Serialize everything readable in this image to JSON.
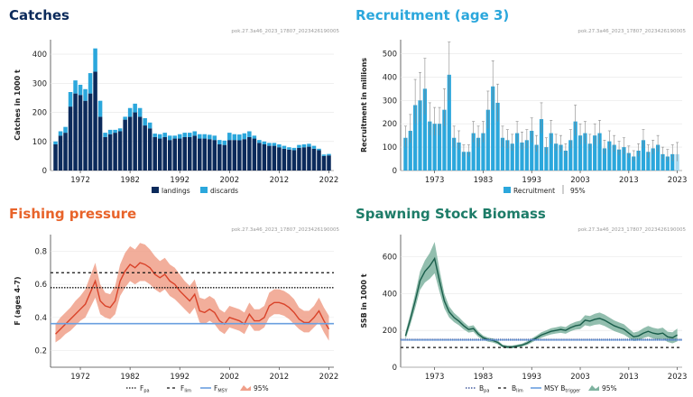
{
  "colors": {
    "title_navy": "#0b2a5b",
    "title_cyan": "#2ba7dc",
    "title_orange": "#e8632a",
    "title_teal": "#1d7c68",
    "landings": "#0b2a5b",
    "discards": "#2ba7dc",
    "recruitment": "#2ba7dc",
    "f_line": "#d9432a",
    "f_band": "#f0a08a",
    "ssb_line": "#1a5e4b",
    "ssb_band": "#7fb3a0",
    "msy_line": "#6a9fe0"
  },
  "chart_data": [
    {
      "id": "catches",
      "type": "bar",
      "title": "Catches",
      "code": "pok.27.3a46_2023_17807_2023426190005",
      "ylabel": "Catches in 1000 t",
      "ylim": [
        0,
        450
      ],
      "yticks": [
        0,
        100,
        200,
        300,
        400
      ],
      "xticks": [
        1972,
        1982,
        1992,
        2002,
        2012,
        2022
      ],
      "x": [
        1967,
        1968,
        1969,
        1970,
        1971,
        1972,
        1973,
        1974,
        1975,
        1976,
        1977,
        1978,
        1979,
        1980,
        1981,
        1982,
        1983,
        1984,
        1985,
        1986,
        1987,
        1988,
        1989,
        1990,
        1991,
        1992,
        1993,
        1994,
        1995,
        1996,
        1997,
        1998,
        1999,
        2000,
        2001,
        2002,
        2003,
        2004,
        2005,
        2006,
        2007,
        2008,
        2009,
        2010,
        2011,
        2012,
        2013,
        2014,
        2015,
        2016,
        2017,
        2018,
        2019,
        2020,
        2021,
        2022
      ],
      "series": [
        {
          "name": "landings",
          "values": [
            90,
            120,
            130,
            220,
            265,
            260,
            240,
            265,
            340,
            185,
            115,
            125,
            130,
            135,
            175,
            185,
            200,
            185,
            155,
            145,
            115,
            110,
            115,
            105,
            110,
            110,
            115,
            115,
            120,
            110,
            110,
            108,
            105,
            90,
            88,
            105,
            105,
            104,
            108,
            115,
            110,
            95,
            90,
            85,
            85,
            80,
            75,
            72,
            70,
            78,
            80,
            82,
            75,
            70,
            50,
            52
          ]
        },
        {
          "name": "discards",
          "values": [
            10,
            15,
            20,
            50,
            45,
            35,
            40,
            70,
            80,
            55,
            15,
            15,
            10,
            10,
            10,
            30,
            30,
            30,
            25,
            20,
            12,
            15,
            15,
            15,
            10,
            15,
            15,
            15,
            15,
            15,
            15,
            15,
            15,
            15,
            15,
            25,
            20,
            20,
            20,
            20,
            10,
            10,
            10,
            10,
            10,
            10,
            10,
            8,
            8,
            10,
            10,
            10,
            10,
            5,
            5,
            5
          ]
        }
      ],
      "legend": [
        "landings",
        "discards"
      ]
    },
    {
      "id": "recruitment",
      "type": "bar",
      "title": "Recruitment (age 3)",
      "code": "pok.27.3a46_2023_17807_2023426190005",
      "ylabel": "Recruitment in millions",
      "ylim": [
        0,
        560
      ],
      "yticks": [
        0,
        100,
        200,
        300,
        400,
        500
      ],
      "xticks": [
        1973,
        1983,
        1993,
        2003,
        2013,
        2023
      ],
      "x": [
        1967,
        1968,
        1969,
        1970,
        1971,
        1972,
        1973,
        1974,
        1975,
        1976,
        1977,
        1978,
        1979,
        1980,
        1981,
        1982,
        1983,
        1984,
        1985,
        1986,
        1987,
        1988,
        1989,
        1990,
        1991,
        1992,
        1993,
        1994,
        1995,
        1996,
        1997,
        1998,
        1999,
        2000,
        2001,
        2002,
        2003,
        2004,
        2005,
        2006,
        2007,
        2008,
        2009,
        2010,
        2011,
        2012,
        2013,
        2014,
        2015,
        2016,
        2017,
        2018,
        2019,
        2020,
        2021,
        2022,
        2023
      ],
      "values": [
        140,
        170,
        280,
        300,
        350,
        210,
        200,
        200,
        260,
        410,
        140,
        120,
        80,
        80,
        160,
        140,
        160,
        260,
        360,
        290,
        140,
        130,
        115,
        160,
        120,
        130,
        170,
        110,
        220,
        100,
        160,
        115,
        110,
        85,
        130,
        210,
        150,
        160,
        115,
        150,
        160,
        95,
        125,
        110,
        90,
        100,
        75,
        60,
        85,
        130,
        80,
        95,
        110,
        70,
        60,
        70,
        70
      ],
      "ci_low": [
        100,
        120,
        200,
        210,
        240,
        150,
        150,
        150,
        190,
        300,
        100,
        90,
        60,
        60,
        120,
        100,
        120,
        180,
        260,
        210,
        100,
        95,
        85,
        120,
        90,
        95,
        120,
        80,
        160,
        70,
        115,
        85,
        80,
        60,
        95,
        150,
        110,
        115,
        85,
        110,
        115,
        70,
        90,
        80,
        65,
        70,
        55,
        40,
        60,
        95,
        55,
        70,
        80,
        50,
        40,
        40,
        40
      ],
      "ci_high": [
        190,
        240,
        390,
        420,
        480,
        290,
        270,
        270,
        350,
        550,
        190,
        170,
        110,
        110,
        210,
        190,
        210,
        340,
        470,
        370,
        190,
        175,
        155,
        210,
        165,
        175,
        225,
        150,
        290,
        140,
        215,
        155,
        150,
        115,
        175,
        280,
        200,
        210,
        155,
        200,
        215,
        130,
        170,
        150,
        125,
        140,
        105,
        85,
        115,
        175,
        110,
        130,
        150,
        100,
        90,
        110,
        120
      ],
      "legend": [
        "Recruitment",
        "95%"
      ]
    },
    {
      "id": "fishing",
      "type": "line",
      "title": "Fishing pressure",
      "code": "pok.27.3a46_2023_17807_2023426190005",
      "ylabel": "F (ages 4-7)",
      "ylim": [
        0.1,
        0.9
      ],
      "yticks": [
        0.2,
        0.4,
        0.6,
        0.8
      ],
      "xticks": [
        1972,
        1982,
        1992,
        2002,
        2012,
        2022
      ],
      "x": [
        1967,
        1968,
        1969,
        1970,
        1971,
        1972,
        1973,
        1974,
        1975,
        1976,
        1977,
        1978,
        1979,
        1980,
        1981,
        1982,
        1983,
        1984,
        1985,
        1986,
        1987,
        1988,
        1989,
        1990,
        1991,
        1992,
        1993,
        1994,
        1995,
        1996,
        1997,
        1998,
        1999,
        2000,
        2001,
        2002,
        2003,
        2004,
        2005,
        2006,
        2007,
        2008,
        2009,
        2010,
        2011,
        2012,
        2013,
        2014,
        2015,
        2016,
        2017,
        2018,
        2019,
        2020,
        2021,
        2022
      ],
      "values": [
        0.3,
        0.33,
        0.36,
        0.39,
        0.42,
        0.45,
        0.48,
        0.55,
        0.62,
        0.5,
        0.47,
        0.46,
        0.5,
        0.62,
        0.68,
        0.72,
        0.7,
        0.73,
        0.72,
        0.7,
        0.66,
        0.64,
        0.66,
        0.62,
        0.6,
        0.56,
        0.53,
        0.5,
        0.54,
        0.44,
        0.43,
        0.45,
        0.43,
        0.38,
        0.36,
        0.4,
        0.39,
        0.38,
        0.36,
        0.42,
        0.38,
        0.38,
        0.4,
        0.47,
        0.49,
        0.49,
        0.48,
        0.46,
        0.43,
        0.39,
        0.37,
        0.37,
        0.4,
        0.44,
        0.38,
        0.33
      ],
      "ci_low": [
        0.25,
        0.27,
        0.3,
        0.32,
        0.35,
        0.38,
        0.4,
        0.46,
        0.52,
        0.42,
        0.4,
        0.39,
        0.42,
        0.53,
        0.58,
        0.62,
        0.6,
        0.62,
        0.62,
        0.6,
        0.57,
        0.55,
        0.57,
        0.53,
        0.51,
        0.48,
        0.45,
        0.42,
        0.46,
        0.37,
        0.36,
        0.38,
        0.36,
        0.32,
        0.3,
        0.34,
        0.33,
        0.32,
        0.3,
        0.36,
        0.32,
        0.32,
        0.34,
        0.4,
        0.42,
        0.42,
        0.41,
        0.39,
        0.36,
        0.33,
        0.31,
        0.31,
        0.34,
        0.37,
        0.31,
        0.26
      ],
      "ci_high": [
        0.36,
        0.4,
        0.43,
        0.46,
        0.5,
        0.53,
        0.57,
        0.65,
        0.73,
        0.6,
        0.55,
        0.54,
        0.59,
        0.72,
        0.79,
        0.83,
        0.81,
        0.85,
        0.84,
        0.81,
        0.77,
        0.74,
        0.76,
        0.72,
        0.7,
        0.66,
        0.62,
        0.59,
        0.63,
        0.52,
        0.51,
        0.53,
        0.51,
        0.45,
        0.43,
        0.47,
        0.46,
        0.45,
        0.43,
        0.49,
        0.45,
        0.45,
        0.47,
        0.55,
        0.57,
        0.57,
        0.56,
        0.54,
        0.51,
        0.46,
        0.44,
        0.44,
        0.47,
        0.52,
        0.46,
        0.41
      ],
      "ref_lines": {
        "Fpa": 0.67,
        "Flim": 0.58,
        "FMSY": 0.363
      },
      "legend": [
        {
          "label": "F",
          "sub": "pa"
        },
        {
          "label": "F",
          "sub": "lim"
        },
        {
          "label": "F",
          "sub": "MSY"
        },
        {
          "label": "95%",
          "sub": ""
        }
      ]
    },
    {
      "id": "ssb",
      "type": "line",
      "title": "Spawning Stock Biomass",
      "code": "pok.27.3a46_2023_17807_2023426190005",
      "ylabel": "SSB in 1000 t",
      "ylim": [
        0,
        720
      ],
      "yticks": [
        0,
        200,
        400,
        600
      ],
      "xticks": [
        1973,
        1983,
        1993,
        2003,
        2013,
        2023
      ],
      "x": [
        1967,
        1968,
        1969,
        1970,
        1971,
        1972,
        1973,
        1974,
        1975,
        1976,
        1977,
        1978,
        1979,
        1980,
        1981,
        1982,
        1983,
        1984,
        1985,
        1986,
        1987,
        1988,
        1989,
        1990,
        1991,
        1992,
        1993,
        1994,
        1995,
        1996,
        1997,
        1998,
        1999,
        2000,
        2001,
        2002,
        2003,
        2004,
        2005,
        2006,
        2007,
        2008,
        2009,
        2010,
        2011,
        2012,
        2013,
        2014,
        2015,
        2016,
        2017,
        2018,
        2019,
        2020,
        2021,
        2022,
        2023
      ],
      "values": [
        170,
        260,
        360,
        470,
        520,
        550,
        590,
        470,
        360,
        300,
        270,
        250,
        225,
        205,
        210,
        180,
        160,
        150,
        145,
        135,
        115,
        110,
        110,
        115,
        120,
        130,
        145,
        160,
        175,
        185,
        195,
        200,
        205,
        200,
        215,
        225,
        230,
        255,
        250,
        260,
        265,
        255,
        240,
        225,
        215,
        205,
        185,
        165,
        170,
        185,
        195,
        185,
        180,
        185,
        165,
        160,
        175
      ],
      "ci_low": [
        150,
        230,
        320,
        420,
        460,
        480,
        510,
        410,
        320,
        270,
        245,
        228,
        205,
        188,
        192,
        165,
        148,
        139,
        134,
        125,
        107,
        102,
        102,
        107,
        112,
        120,
        134,
        148,
        160,
        170,
        178,
        183,
        187,
        182,
        195,
        204,
        207,
        228,
        222,
        230,
        233,
        224,
        210,
        196,
        187,
        177,
        160,
        142,
        145,
        158,
        166,
        156,
        151,
        155,
        137,
        130,
        140
      ],
      "ci_high": [
        190,
        290,
        400,
        520,
        580,
        620,
        680,
        530,
        400,
        330,
        295,
        272,
        245,
        222,
        228,
        195,
        172,
        161,
        156,
        145,
        123,
        118,
        118,
        123,
        128,
        140,
        156,
        172,
        190,
        200,
        212,
        217,
        223,
        218,
        235,
        246,
        253,
        282,
        278,
        290,
        297,
        286,
        270,
        254,
        243,
        233,
        210,
        188,
        195,
        212,
        224,
        214,
        209,
        215,
        193,
        190,
        210
      ],
      "ref_lines": {
        "Bpa": 149,
        "Blim": 107,
        "MSYBtrigger": 149
      },
      "legend": [
        {
          "label": "B",
          "sub": "pa"
        },
        {
          "label": "B",
          "sub": "lim"
        },
        {
          "label": "MSY B",
          "sub": "trigger"
        },
        {
          "label": "95%",
          "sub": ""
        }
      ]
    }
  ]
}
